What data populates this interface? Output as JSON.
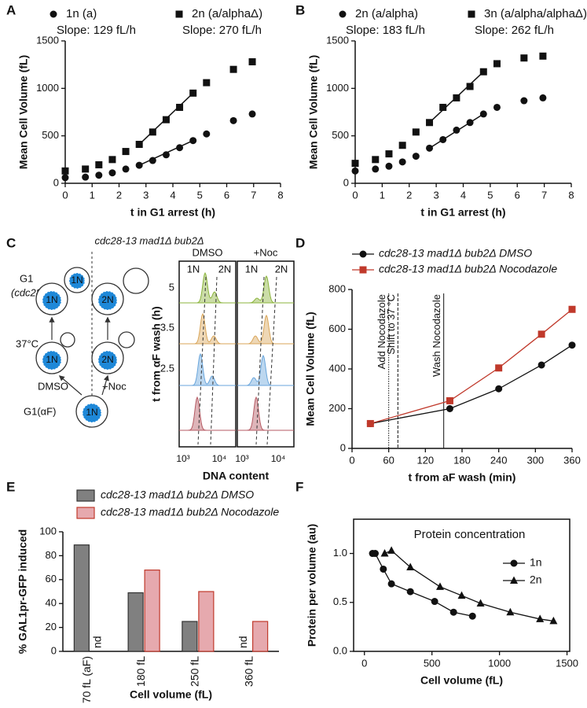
{
  "panel_labels": [
    "A",
    "B",
    "C",
    "D",
    "E",
    "F"
  ],
  "chart_data": [
    {
      "type": "scatter",
      "xlabel": "t in G1 arrest (h)",
      "ylabel": "Mean Cell Volume (fL)",
      "xlim": [
        0,
        8
      ],
      "ylim": [
        0,
        1500
      ],
      "xticks": [
        0,
        1,
        2,
        3,
        4,
        5,
        6,
        7,
        8
      ],
      "yticks": [
        0,
        500,
        1000,
        1500
      ],
      "x": [
        0,
        0.75,
        1.25,
        1.75,
        2.25,
        2.75,
        3.25,
        3.75,
        4.25,
        4.75,
        5.25,
        6.25,
        6.95
      ],
      "series": [
        {
          "name": "1n (a)",
          "annotation": "Slope: 129 fL/h",
          "color": "#111111",
          "marker": "circle",
          "values": [
            60,
            65,
            85,
            110,
            150,
            190,
            240,
            300,
            375,
            450,
            520,
            660,
            730
          ],
          "fit": {
            "x": [
              2.75,
              4.75
            ],
            "y": [
              190,
              450
            ]
          }
        },
        {
          "name": "2n (a/alphaΔ)",
          "annotation": "Slope: 270 fL/h",
          "color": "#111111",
          "marker": "square",
          "values": [
            130,
            150,
            195,
            250,
            335,
            410,
            540,
            670,
            800,
            950,
            1060,
            1200,
            1280
          ],
          "fit": {
            "x": [
              2.75,
              4.75
            ],
            "y": [
              410,
              950
            ]
          }
        }
      ]
    },
    {
      "type": "scatter",
      "xlabel": "t in G1 arrest (h)",
      "ylabel": "Mean Cell Volume (fL)",
      "xlim": [
        0,
        8
      ],
      "ylim": [
        0,
        1500
      ],
      "xticks": [
        0,
        1,
        2,
        3,
        4,
        5,
        6,
        7,
        8
      ],
      "yticks": [
        0,
        500,
        1000,
        1500
      ],
      "x": [
        0,
        0.75,
        1.25,
        1.75,
        2.25,
        2.75,
        3.25,
        3.75,
        4.25,
        4.75,
        5.25,
        6.25,
        6.95
      ],
      "series": [
        {
          "name": "2n (a/alpha)",
          "annotation": "Slope: 183 fL/h",
          "color": "#111111",
          "marker": "circle",
          "values": [
            130,
            150,
            180,
            225,
            285,
            370,
            460,
            560,
            640,
            730,
            800,
            870,
            900
          ],
          "fit": {
            "x": [
              2.75,
              4.75
            ],
            "y": [
              370,
              730
            ]
          }
        },
        {
          "name": "3n (a/alpha/alphaΔ)",
          "annotation": "Slope: 262 fL/h",
          "color": "#111111",
          "marker": "square",
          "values": [
            210,
            250,
            310,
            400,
            540,
            640,
            800,
            900,
            1020,
            1175,
            1260,
            1320,
            1340
          ],
          "fit": {
            "x": [
              2.75,
              4.75
            ],
            "y": [
              640,
              1175
            ]
          }
        }
      ]
    },
    {
      "type": "line",
      "xlabel": "t from aF wash (min)",
      "ylabel": "Mean Cell Volume (fL)",
      "xlim": [
        0,
        360
      ],
      "ylim": [
        0,
        800
      ],
      "xticks": [
        0,
        60,
        120,
        180,
        240,
        300,
        360
      ],
      "yticks": [
        0,
        200,
        400,
        600,
        800
      ],
      "x": [
        30,
        160,
        240,
        310,
        360
      ],
      "series": [
        {
          "name": "cdc28-13 mad1Δ bub2Δ DMSO",
          "color": "#111111",
          "marker": "circle",
          "values": [
            125,
            200,
            300,
            420,
            520
          ]
        },
        {
          "name": "cdc28-13 mad1Δ bub2Δ Nocodazole",
          "color": "#c0392b",
          "marker": "square",
          "values": [
            125,
            240,
            405,
            575,
            700
          ]
        }
      ],
      "events": [
        {
          "x": 60,
          "label": "Add Nocodazole",
          "style": "dotted"
        },
        {
          "x": 75,
          "label": "Shift to 37 °C",
          "style": "dashed"
        },
        {
          "x": 150,
          "label": "Wash Nocodazole",
          "style": "solid"
        }
      ]
    },
    {
      "type": "bar",
      "xlabel": "Cell volume (fL)",
      "ylabel": "% GAL1pr-GFP induced",
      "categories": [
        "70 fL (aF)",
        "180 fL",
        "250 fL",
        "360 fL"
      ],
      "ylim": [
        0,
        100
      ],
      "yticks": [
        0,
        20,
        40,
        60,
        80,
        100
      ],
      "series": [
        {
          "name": "cdc28-13 mad1Δ bub2Δ DMSO",
          "color": "#808080",
          "edgecolor": "#333333",
          "values": [
            89,
            49,
            25,
            null
          ],
          "value_labels": [
            null,
            null,
            null,
            "nd"
          ]
        },
        {
          "name": "cdc28-13 mad1Δ bub2Δ Nocodazole",
          "color": "#e6a9ae",
          "edgecolor": "#c0392b",
          "values": [
            null,
            68,
            50,
            25
          ],
          "value_labels": [
            "nd",
            null,
            null,
            null
          ]
        }
      ]
    },
    {
      "type": "line",
      "title": "Protein concentration",
      "xlabel": "Cell volume (fL)",
      "ylabel": "Protein per volume (au)",
      "frame": true,
      "xlim": [
        -80,
        1520
      ],
      "ylim": [
        0,
        1.35
      ],
      "xticks": [
        0,
        500,
        1000,
        1500
      ],
      "yticks": [
        {
          "value": 0,
          "label": "0.0"
        },
        {
          "value": 0.5,
          "label": "0.5"
        },
        {
          "value": 1,
          "label": "1.0"
        }
      ],
      "series": [
        {
          "name": "1n",
          "color": "#111111",
          "marker": "circle",
          "x": [
            60,
            80,
            140,
            200,
            340,
            520,
            660,
            800
          ],
          "values": [
            1.0,
            1.0,
            0.84,
            0.69,
            0.61,
            0.51,
            0.4,
            0.36
          ]
        },
        {
          "name": "2n",
          "color": "#111111",
          "marker": "triangle",
          "x": [
            150,
            200,
            340,
            560,
            720,
            860,
            1080,
            1300,
            1400
          ],
          "values": [
            1.0,
            1.03,
            0.86,
            0.66,
            0.57,
            0.49,
            0.4,
            0.33,
            0.31
          ]
        }
      ]
    }
  ],
  "figure_c": {
    "title": "cdc28-13 mad1Δ bub2Δ",
    "labels": {
      "g1": "G1",
      "cdc28": "(cdc28)",
      "temp": "37°C",
      "dmso": "DMSO",
      "noc": "+Noc",
      "g1af": "G1(αF)"
    },
    "nuclei": [
      "1N",
      "1N",
      "1N",
      "2N",
      "2N",
      "1N"
    ],
    "histogram": {
      "columns": [
        "DMSO",
        "+Noc"
      ],
      "peak_labels": [
        "1N",
        "2N",
        "1N",
        "2N"
      ],
      "yticks": [
        5,
        3.5,
        2.5
      ],
      "xticks": [
        "10³",
        "10⁴",
        "10³",
        "10⁴"
      ],
      "ylabel": "t from αF wash (h)",
      "xlabel": "DNA content"
    }
  }
}
